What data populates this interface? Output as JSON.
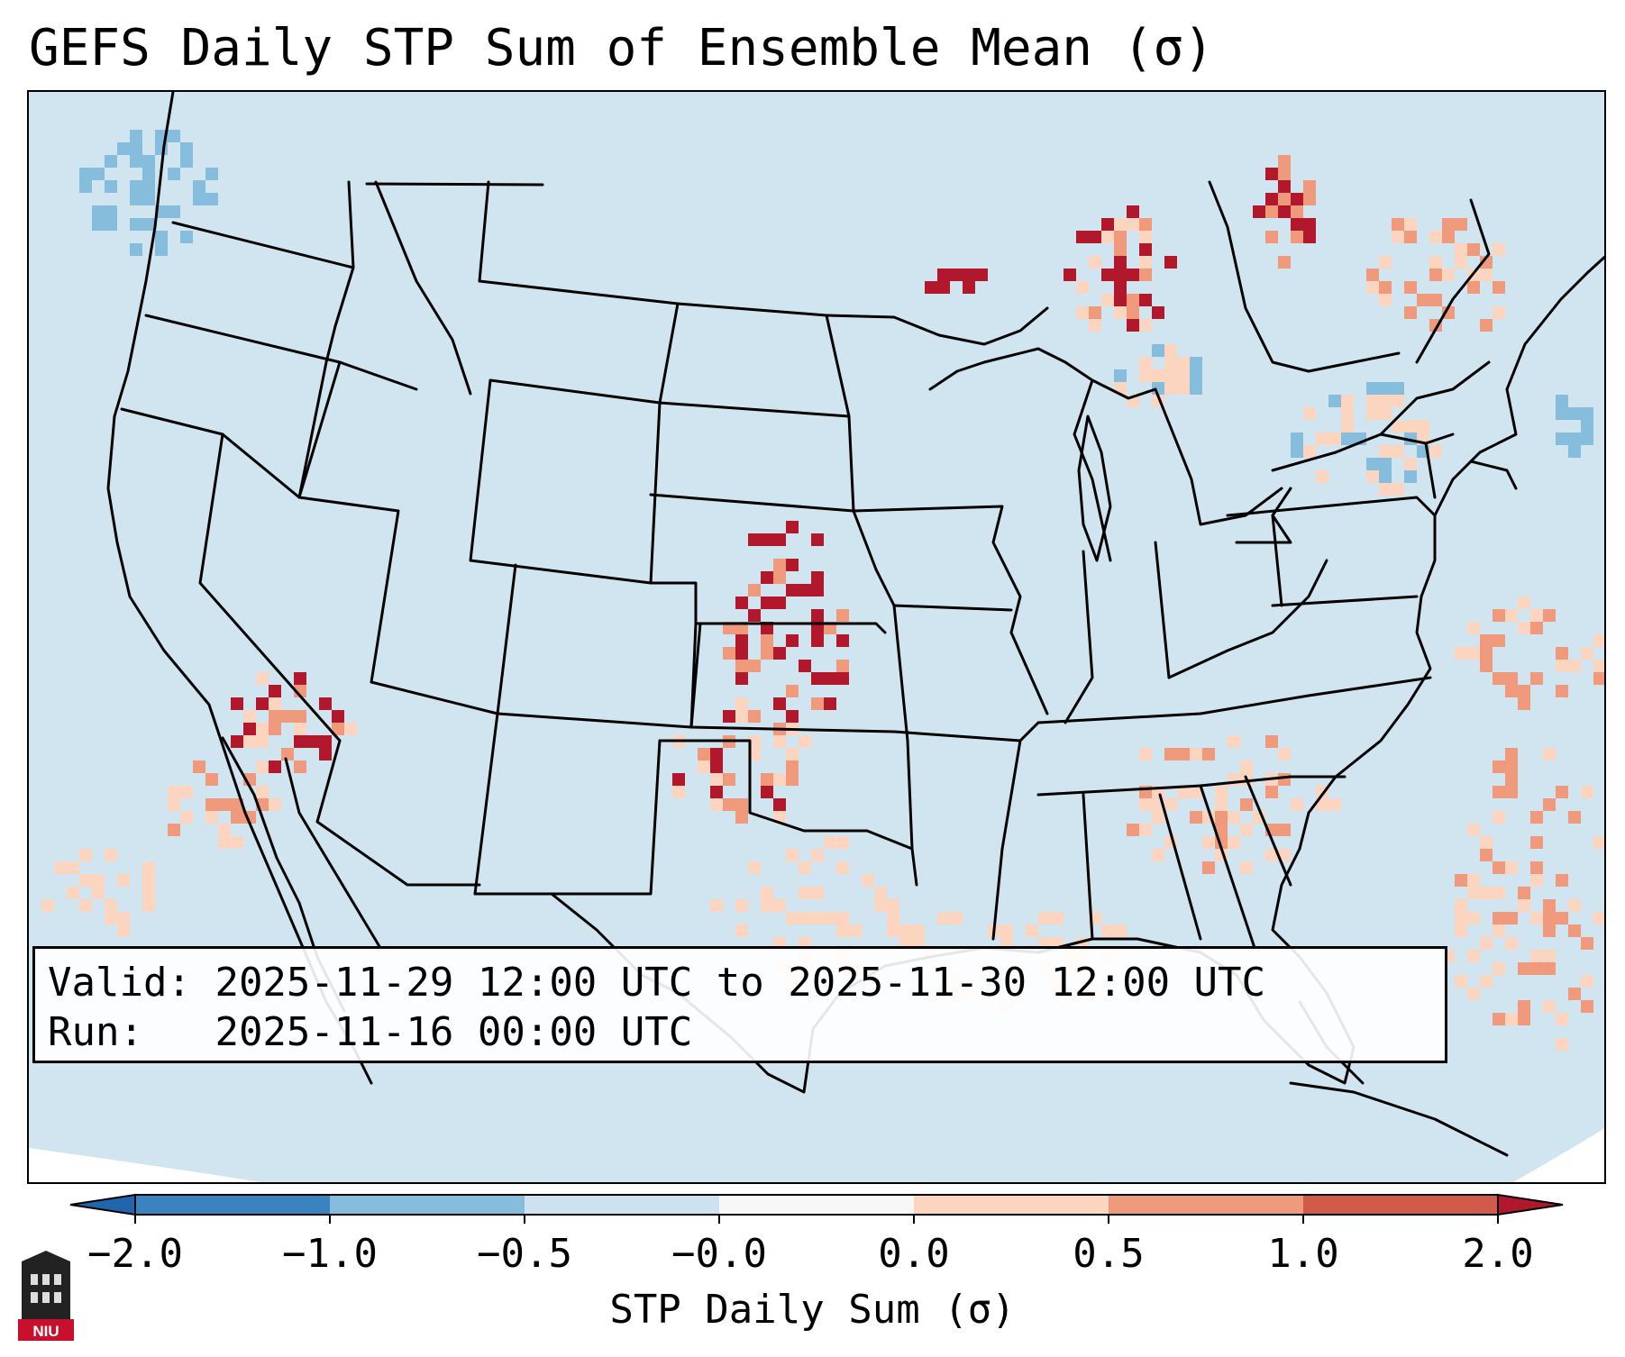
{
  "title": "GEFS Daily STP Sum of Ensemble Mean (σ)",
  "info": {
    "valid_label": "Valid:",
    "valid_value": "2025-11-29 12:00 UTC to 2025-11-30 12:00 UTC",
    "run_label": "Run:",
    "run_value": "2025-11-16 00:00 UTC"
  },
  "colorbar": {
    "label": "STP Daily Sum (σ)",
    "ticks": [
      "−2.0",
      "−1.0",
      "−0.5",
      "−0.0",
      "0.0",
      "0.5",
      "1.0",
      "2.0"
    ],
    "colors": [
      "#3a83c0",
      "#86bcdc",
      "#cde1ee",
      "#f7f7f7",
      "#fcd5c0",
      "#ef9a7c",
      "#d15a4b"
    ],
    "extend_low_color": "#2166ac",
    "extend_high_color": "#b2182b"
  },
  "map": {
    "background_color": "#d1e5f0",
    "border_color": "#000000",
    "outside_color": "#ffffff"
  },
  "logo": {
    "text": "NIU",
    "color": "#c8102e"
  },
  "icons": {
    "logo": "niu-building-logo-icon"
  }
}
